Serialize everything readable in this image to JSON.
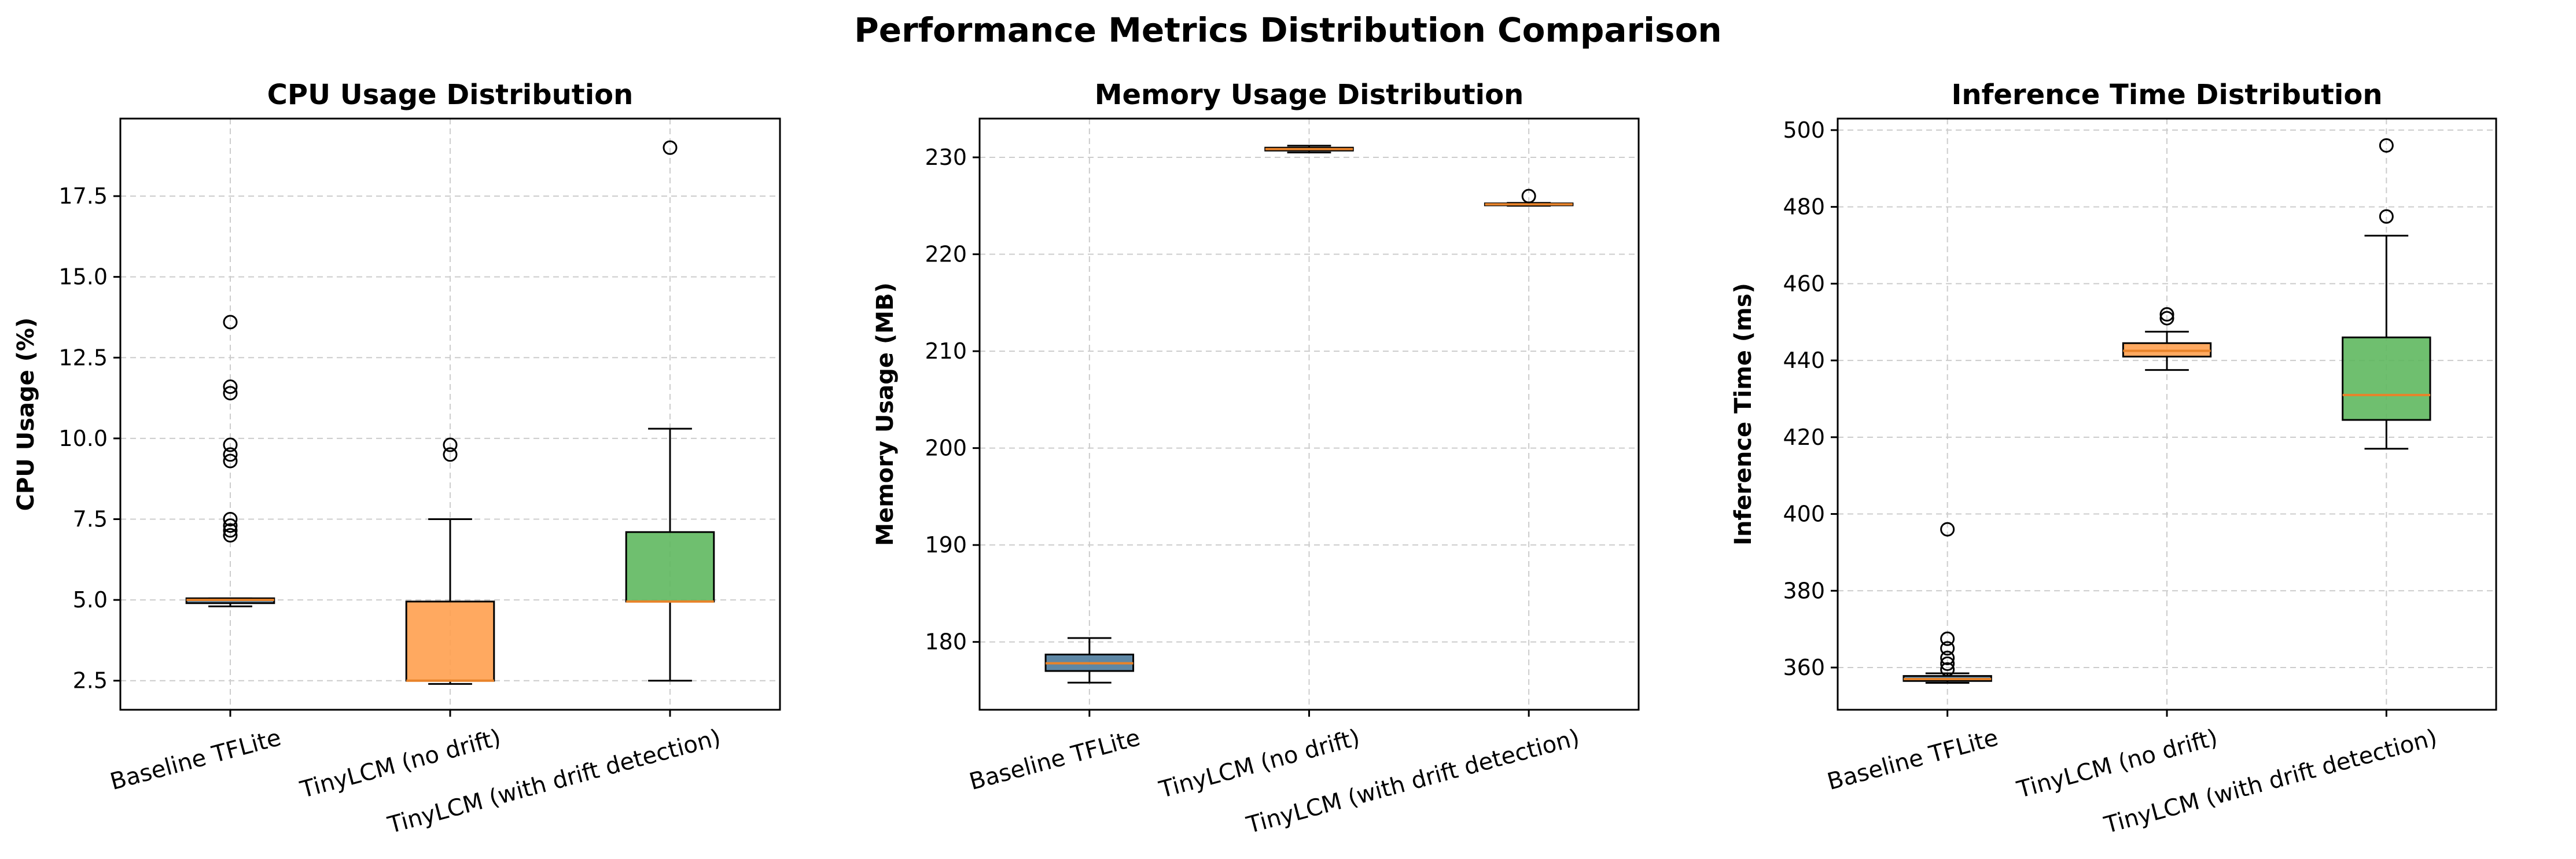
{
  "title": "Performance Metrics Distribution Comparison",
  "chart_data": [
    {
      "type": "box",
      "title": "CPU Usage Distribution",
      "xlabel": "",
      "ylabel": "CPU Usage (%)",
      "ylim": [
        1.6,
        19.9
      ],
      "yticks": [
        2.5,
        5.0,
        7.5,
        10.0,
        12.5,
        15.0,
        17.5
      ],
      "ytick_labels": [
        "2.5",
        "5.0",
        "7.5",
        "10.0",
        "12.5",
        "15.0",
        "17.5"
      ],
      "grid": true,
      "categories": [
        "Baseline TFLite",
        "TinyLCM (no drift)",
        "TinyLCM (with drift detection)"
      ],
      "boxes": [
        {
          "name": "Baseline TFLite",
          "color": "#4C7A9B",
          "whisker_low": 4.8,
          "q1": 4.9,
          "median": 5.0,
          "q3": 5.05,
          "whisker_high": 5.05,
          "outliers": [
            7.0,
            7.15,
            7.3,
            7.5,
            9.3,
            9.5,
            9.8,
            11.4,
            11.6,
            13.6
          ]
        },
        {
          "name": "TinyLCM (no drift)",
          "color": "#FFA04F",
          "whisker_low": 2.4,
          "q1": 2.5,
          "median": 2.5,
          "q3": 4.95,
          "whisker_high": 7.5,
          "outliers": [
            9.5,
            9.8
          ]
        },
        {
          "name": "TinyLCM (with drift detection)",
          "color": "#5FB85F",
          "whisker_low": 2.5,
          "q1": 4.95,
          "median": 4.95,
          "q3": 7.1,
          "whisker_high": 10.3,
          "outliers": [
            19.0
          ]
        }
      ]
    },
    {
      "type": "box",
      "title": "Memory Usage Distribution",
      "xlabel": "",
      "ylabel": "Memory Usage (MB)",
      "ylim": [
        173.0,
        234.0
      ],
      "yticks": [
        180,
        190,
        200,
        210,
        220,
        230
      ],
      "ytick_labels": [
        "180",
        "190",
        "200",
        "210",
        "220",
        "230"
      ],
      "grid": true,
      "categories": [
        "Baseline TFLite",
        "TinyLCM (no drift)",
        "TinyLCM (with drift detection)"
      ],
      "boxes": [
        {
          "name": "Baseline TFLite",
          "color": "#4C7A9B",
          "whisker_low": 175.8,
          "q1": 177.0,
          "median": 177.8,
          "q3": 178.7,
          "whisker_high": 180.4,
          "outliers": []
        },
        {
          "name": "TinyLCM (no drift)",
          "color": "#FFA04F",
          "whisker_low": 230.5,
          "q1": 230.7,
          "median": 230.85,
          "q3": 231.0,
          "whisker_high": 231.2,
          "outliers": []
        },
        {
          "name": "TinyLCM (with drift detection)",
          "color": "#5FB85F",
          "whisker_low": 225.0,
          "q1": 225.05,
          "median": 225.15,
          "q3": 225.25,
          "whisker_high": 225.3,
          "outliers": [
            226.0
          ]
        }
      ]
    },
    {
      "type": "box",
      "title": "Inference Time Distribution",
      "xlabel": "",
      "ylabel": "Inference Time (ms)",
      "ylim": [
        349.0,
        503.0
      ],
      "yticks": [
        360,
        380,
        400,
        420,
        440,
        460,
        480,
        500
      ],
      "ytick_labels": [
        "360",
        "380",
        "400",
        "420",
        "440",
        "460",
        "480",
        "500"
      ],
      "grid": true,
      "categories": [
        "Baseline TFLite",
        "TinyLCM (no drift)",
        "TinyLCM (with drift detection)"
      ],
      "boxes": [
        {
          "name": "Baseline TFLite",
          "color": "#4C7A9B",
          "whisker_low": 356.0,
          "q1": 356.5,
          "median": 357.0,
          "q3": 357.8,
          "whisker_high": 358.5,
          "outliers": [
            359.5,
            361.0,
            362.5,
            365.0,
            367.5,
            396.0
          ]
        },
        {
          "name": "TinyLCM (no drift)",
          "color": "#FFA04F",
          "whisker_low": 437.5,
          "q1": 441.0,
          "median": 442.5,
          "q3": 444.5,
          "whisker_high": 447.5,
          "outliers": [
            451.0,
            452.0
          ]
        },
        {
          "name": "TinyLCM (with drift detection)",
          "color": "#5FB85F",
          "whisker_low": 417.0,
          "q1": 424.5,
          "median": 431.0,
          "q3": 446.0,
          "whisker_high": 472.5,
          "outliers": [
            477.5,
            496.0
          ]
        }
      ]
    }
  ],
  "colors": {
    "median_line": "#E8832A",
    "grid": "#CCCCCC",
    "axis": "#000000"
  }
}
